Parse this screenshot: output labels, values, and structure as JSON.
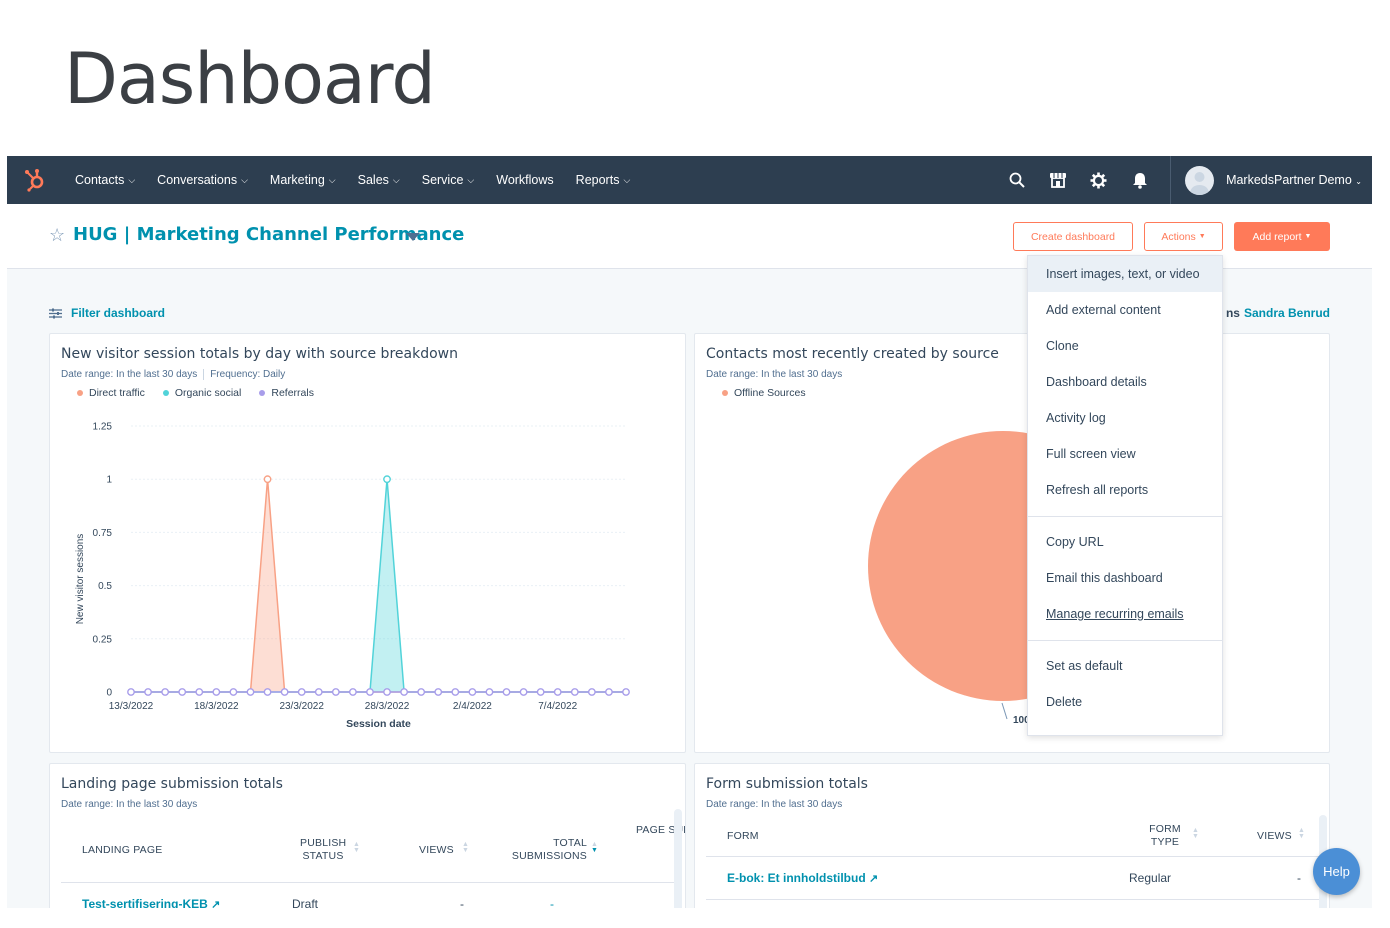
{
  "slide": {
    "title": "Dashboard"
  },
  "colors": {
    "nav_bg": "#2d3e50",
    "accent": "#ff7a59",
    "link": "#0091ae",
    "direct": "#f8a185",
    "organic": "#51d3d9",
    "referrals": "#a89dea",
    "help": "#4b8fd6"
  },
  "nav": {
    "logo": "hubspot-sprocket-icon",
    "items": [
      {
        "label": "Contacts",
        "dropdown": true
      },
      {
        "label": "Conversations",
        "dropdown": true
      },
      {
        "label": "Marketing",
        "dropdown": true
      },
      {
        "label": "Sales",
        "dropdown": true
      },
      {
        "label": "Service",
        "dropdown": true
      },
      {
        "label": "Workflows",
        "dropdown": false
      },
      {
        "label": "Reports",
        "dropdown": true
      }
    ],
    "icons": [
      "search-icon",
      "marketplace-icon",
      "settings-gear-icon",
      "notifications-bell-icon"
    ],
    "account": "MarkedsPartner Demo"
  },
  "header": {
    "dashboard_title": "HUG | Marketing Channel Performance",
    "create_label": "Create dashboard",
    "actions_label": "Actions",
    "add_report_label": "Add report"
  },
  "filter": {
    "label": "Filter dashboard",
    "assigned_prefix": "ns",
    "assigned_name": "Sandra Benrud"
  },
  "actions_menu": {
    "groups": [
      [
        "Insert images, text, or video",
        "Add external content",
        "Clone",
        "Dashboard details",
        "Activity log",
        "Full screen view",
        "Refresh all reports"
      ],
      [
        "Copy URL",
        "Email this dashboard",
        "Manage recurring emails"
      ],
      [
        "Set as default",
        "Delete"
      ]
    ]
  },
  "cards": {
    "sessions": {
      "title": "New visitor session totals by day with source breakdown",
      "date_range": "Date range: In the last 30 days",
      "frequency": "Frequency: Daily",
      "legend": [
        "Direct traffic",
        "Organic social",
        "Referrals"
      ]
    },
    "contacts": {
      "title": "Contacts most recently created by source",
      "date_range": "Date range: In the last 30 days",
      "legend": [
        "Offline Sources"
      ],
      "slice_label": "100"
    },
    "landing": {
      "title": "Landing page submission totals",
      "date_range": "Date range: In the last 30 days",
      "columns": [
        "LANDING PAGE",
        "PUBLISH STATUS",
        "VIEWS",
        "TOTAL SUBMISSIONS",
        "PAGE SUBMISSIONS"
      ],
      "rows": [
        {
          "page": "Test-sertifisering-KEB",
          "status": "Draft",
          "views": "-",
          "total": "-"
        }
      ]
    },
    "forms": {
      "title": "Form submission totals",
      "date_range": "Date range: In the last 30 days",
      "columns": [
        "FORM",
        "FORM TYPE",
        "VIEWS"
      ],
      "rows": [
        {
          "form": "E-bok: Et innholdstilbud",
          "type": "Regular",
          "views": "-"
        }
      ]
    }
  },
  "help_label": "Help",
  "chart_data": [
    {
      "type": "area",
      "title": "New visitor session totals by day with source breakdown",
      "xlabel": "Session date",
      "ylabel": "New visitor sessions",
      "ylim": [
        0,
        1.25
      ],
      "y_ticks": [
        0,
        0.25,
        0.5,
        0.75,
        1,
        1.25
      ],
      "x_ticks": [
        "13/3/2022",
        "18/3/2022",
        "23/3/2022",
        "28/3/2022",
        "2/4/2022",
        "7/4/2022"
      ],
      "x": [
        "13/3/2022",
        "14/3/2022",
        "15/3/2022",
        "16/3/2022",
        "17/3/2022",
        "18/3/2022",
        "19/3/2022",
        "20/3/2022",
        "21/3/2022",
        "22/3/2022",
        "23/3/2022",
        "24/3/2022",
        "25/3/2022",
        "26/3/2022",
        "27/3/2022",
        "28/3/2022",
        "29/3/2022",
        "30/3/2022",
        "31/3/2022",
        "1/4/2022",
        "2/4/2022",
        "3/4/2022",
        "4/4/2022",
        "5/4/2022",
        "6/4/2022",
        "7/4/2022",
        "8/4/2022",
        "9/4/2022",
        "10/4/2022",
        "11/4/2022"
      ],
      "series": [
        {
          "name": "Direct traffic",
          "color": "#f8a185",
          "values": [
            0,
            0,
            0,
            0,
            0,
            0,
            0,
            0,
            1,
            0,
            0,
            0,
            0,
            0,
            0,
            0,
            0,
            0,
            0,
            0,
            0,
            0,
            0,
            0,
            0,
            0,
            0,
            0,
            0,
            0
          ]
        },
        {
          "name": "Organic social",
          "color": "#51d3d9",
          "values": [
            0,
            0,
            0,
            0,
            0,
            0,
            0,
            0,
            0,
            0,
            0,
            0,
            0,
            0,
            0,
            1,
            0,
            0,
            0,
            0,
            0,
            0,
            0,
            0,
            0,
            0,
            0,
            0,
            0,
            0
          ]
        },
        {
          "name": "Referrals",
          "color": "#a89dea",
          "values": [
            0,
            0,
            0,
            0,
            0,
            0,
            0,
            0,
            0,
            0,
            0,
            0,
            0,
            0,
            0,
            0,
            0,
            0,
            0,
            0,
            0,
            0,
            0,
            0,
            0,
            0,
            0,
            0,
            0,
            0
          ]
        }
      ],
      "grid": true,
      "legend": "top-left"
    },
    {
      "type": "pie",
      "title": "Contacts most recently created by source",
      "categories": [
        "Offline Sources"
      ],
      "values": [
        100
      ],
      "colors": [
        "#f8a185"
      ],
      "legend": "top-left"
    }
  ]
}
